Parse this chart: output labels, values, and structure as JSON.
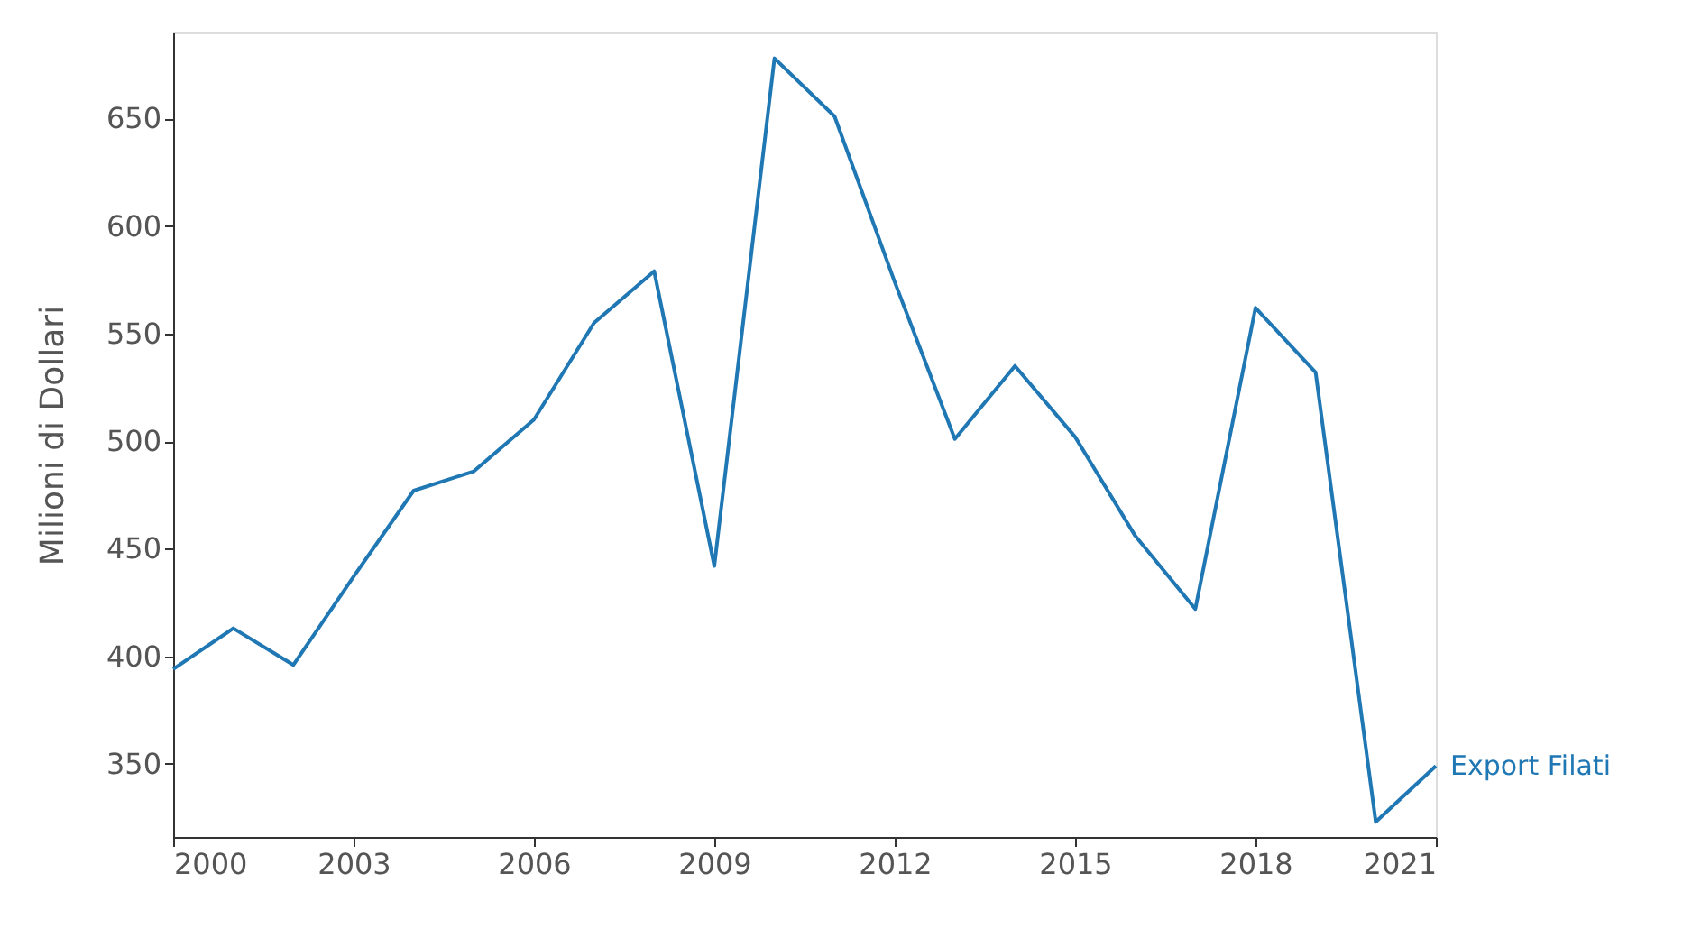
{
  "chart_data": {
    "type": "line",
    "ylabel": "Milioni di Dollari",
    "x": [
      2000,
      2001,
      2002,
      2003,
      2004,
      2005,
      2006,
      2007,
      2008,
      2009,
      2010,
      2011,
      2012,
      2013,
      2014,
      2015,
      2016,
      2017,
      2018,
      2019,
      2020,
      2021
    ],
    "series": [
      {
        "name": "Export Filati",
        "color": "#1f77b4",
        "values": [
          394,
          413,
          396,
          437,
          477,
          486,
          510,
          555,
          579,
          442,
          678,
          651,
          574,
          501,
          535,
          502,
          456,
          422,
          562,
          532,
          323,
          349
        ]
      }
    ],
    "xlim": [
      2000,
      2021
    ],
    "xticks": [
      2000,
      2003,
      2006,
      2009,
      2012,
      2015,
      2018,
      2021
    ],
    "ylim": [
      316,
      690
    ],
    "yticks": [
      350,
      400,
      450,
      500,
      550,
      600,
      650
    ],
    "grid": false,
    "legend": false,
    "marker": "none",
    "line_style": "solid"
  }
}
